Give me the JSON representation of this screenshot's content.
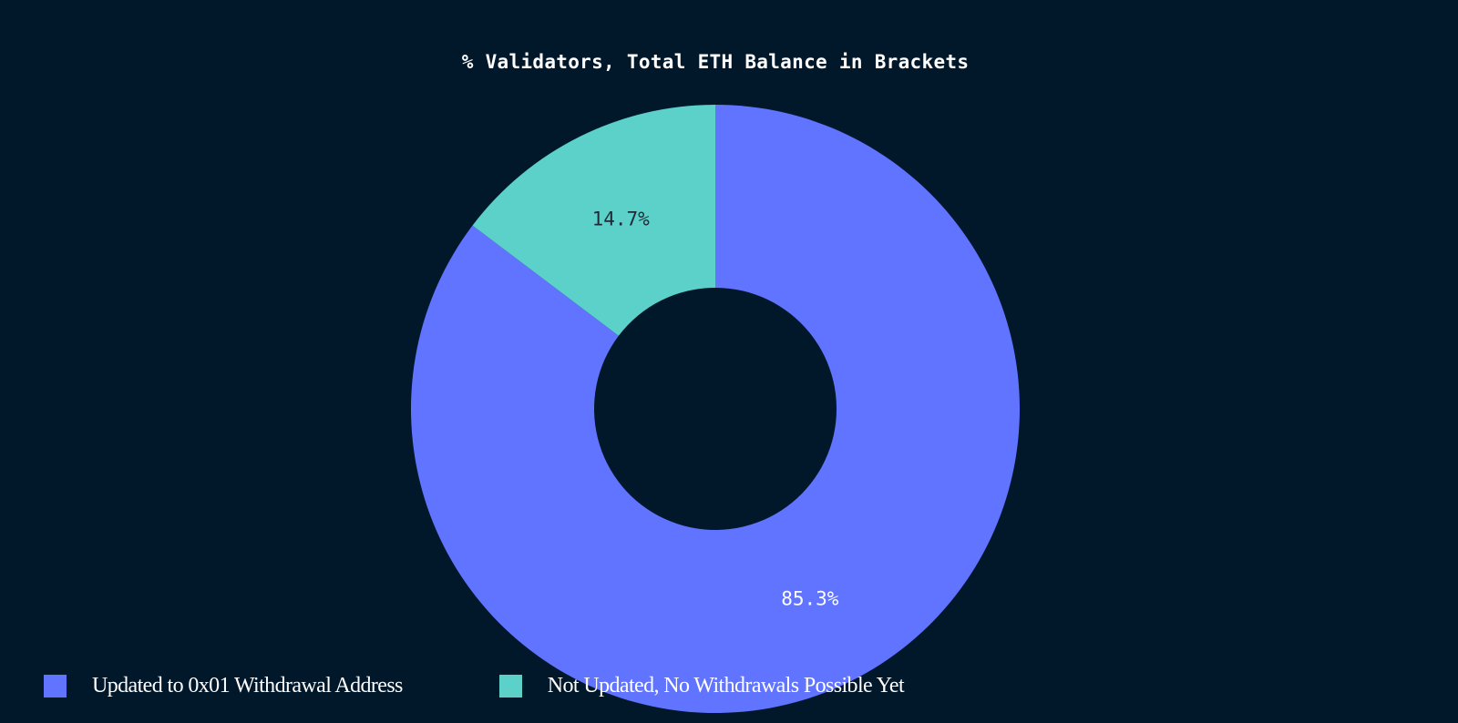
{
  "chart_data": {
    "type": "pie",
    "title": "% Validators, Total ETH Balance in Brackets",
    "donut": true,
    "slices": [
      {
        "label": "Updated to 0x01 Withdrawal Address",
        "value": 85.3,
        "display": "85.3%",
        "color": "#6174ff",
        "label_color": "#ffffff"
      },
      {
        "label": "Not Updated, No Withdrawals Possible Yet",
        "value": 14.7,
        "display": "14.7%",
        "color": "#5bd1c9",
        "label_color": "#1f2a36"
      }
    ],
    "legend_position": "bottom"
  },
  "colors": {
    "background": "#01172a"
  }
}
